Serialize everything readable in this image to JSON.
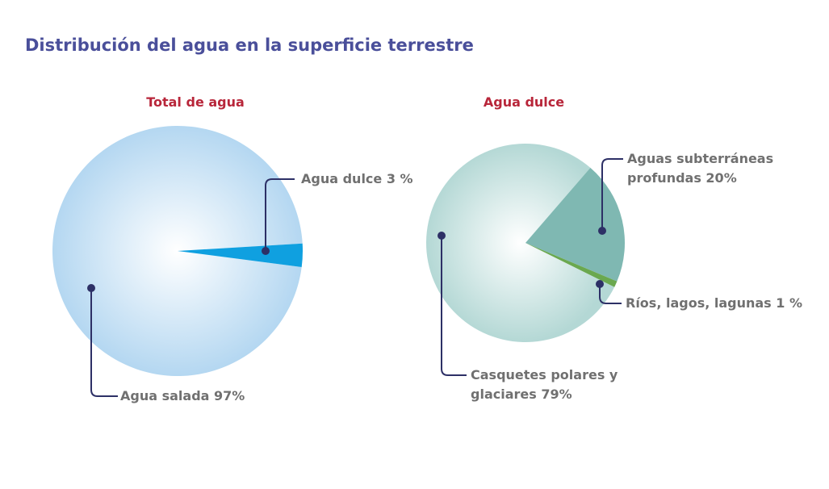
{
  "title": "Distribución del agua en la superficie terrestre",
  "colors": {
    "title": "#4a4f9a",
    "chart_title": "#b8263a",
    "label": "#707070",
    "leader": "#2d3066"
  },
  "chart_data": [
    {
      "type": "pie",
      "title": "Total de agua",
      "slices": [
        {
          "label": "Agua salada 97%",
          "value": 97,
          "color": "#b4d7f1"
        },
        {
          "label": "Agua dulce 3 %",
          "value": 3,
          "color": "#0fa0e0"
        }
      ]
    },
    {
      "type": "pie",
      "title": "Agua dulce",
      "slices": [
        {
          "label": "Casquetes polares y glaciares 79%",
          "value": 79,
          "color": "#b4d8d5"
        },
        {
          "label": "Aguas subterráneas profundas 20%",
          "value": 20,
          "color": "#7fb8b2"
        },
        {
          "label": "Ríos, lagos, lagunas 1 %",
          "value": 1,
          "color": "#6aa84f"
        }
      ]
    }
  ]
}
